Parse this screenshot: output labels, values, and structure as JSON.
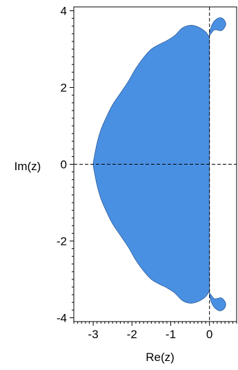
{
  "chart_data": {
    "type": "area",
    "xlabel": "Re(z)",
    "ylabel": "Im(z)",
    "xlim": [
      -3.5,
      0.7
    ],
    "ylim": [
      -4.1,
      4.1
    ],
    "x_ticks": [
      -3,
      -2,
      -1,
      0
    ],
    "y_ticks": [
      -4,
      -2,
      0,
      2,
      4
    ],
    "x_tick_labels": [
      "-3",
      "-2",
      "-1",
      "0"
    ],
    "y_tick_labels": [
      "-4",
      "-2",
      "0",
      "2",
      "4"
    ],
    "grid": false,
    "legend": "none",
    "fill_color": "#4a90e2",
    "region_boundary": [
      [
        0.0,
        3.3
      ],
      [
        -0.1,
        3.45
      ],
      [
        -0.3,
        3.58
      ],
      [
        -0.5,
        3.62
      ],
      [
        -0.7,
        3.55
      ],
      [
        -0.9,
        3.35
      ],
      [
        -1.1,
        3.22
      ],
      [
        -1.3,
        3.12
      ],
      [
        -1.5,
        3.0
      ],
      [
        -1.7,
        2.78
      ],
      [
        -1.9,
        2.5
      ],
      [
        -2.1,
        2.15
      ],
      [
        -2.3,
        1.85
      ],
      [
        -2.5,
        1.55
      ],
      [
        -2.65,
        1.25
      ],
      [
        -2.8,
        0.9
      ],
      [
        -2.9,
        0.55
      ],
      [
        -2.97,
        0.2
      ],
      [
        -3.0,
        0.0
      ],
      [
        -2.97,
        -0.2
      ],
      [
        -2.9,
        -0.55
      ],
      [
        -2.8,
        -0.9
      ],
      [
        -2.65,
        -1.25
      ],
      [
        -2.5,
        -1.55
      ],
      [
        -2.3,
        -1.85
      ],
      [
        -2.1,
        -2.15
      ],
      [
        -1.9,
        -2.5
      ],
      [
        -1.7,
        -2.78
      ],
      [
        -1.5,
        -3.0
      ],
      [
        -1.3,
        -3.12
      ],
      [
        -1.1,
        -3.22
      ],
      [
        -0.9,
        -3.35
      ],
      [
        -0.7,
        -3.55
      ],
      [
        -0.5,
        -3.62
      ],
      [
        -0.3,
        -3.58
      ],
      [
        -0.1,
        -3.45
      ],
      [
        0.0,
        -3.3
      ]
    ],
    "top_lobe": [
      [
        0.0,
        3.35
      ],
      [
        0.05,
        3.42
      ],
      [
        0.12,
        3.5
      ],
      [
        0.2,
        3.5
      ],
      [
        0.3,
        3.48
      ],
      [
        0.38,
        3.55
      ],
      [
        0.42,
        3.65
      ],
      [
        0.38,
        3.76
      ],
      [
        0.28,
        3.82
      ],
      [
        0.18,
        3.78
      ],
      [
        0.1,
        3.7
      ],
      [
        0.05,
        3.6
      ],
      [
        0.02,
        3.5
      ],
      [
        0.0,
        3.45
      ]
    ],
    "bottom_lobe": [
      [
        0.0,
        -3.35
      ],
      [
        0.05,
        -3.42
      ],
      [
        0.12,
        -3.5
      ],
      [
        0.2,
        -3.5
      ],
      [
        0.3,
        -3.48
      ],
      [
        0.38,
        -3.55
      ],
      [
        0.42,
        -3.65
      ],
      [
        0.38,
        -3.76
      ],
      [
        0.28,
        -3.82
      ],
      [
        0.18,
        -3.78
      ],
      [
        0.1,
        -3.7
      ],
      [
        0.05,
        -3.6
      ],
      [
        0.02,
        -3.5
      ],
      [
        0.0,
        -3.45
      ]
    ]
  }
}
